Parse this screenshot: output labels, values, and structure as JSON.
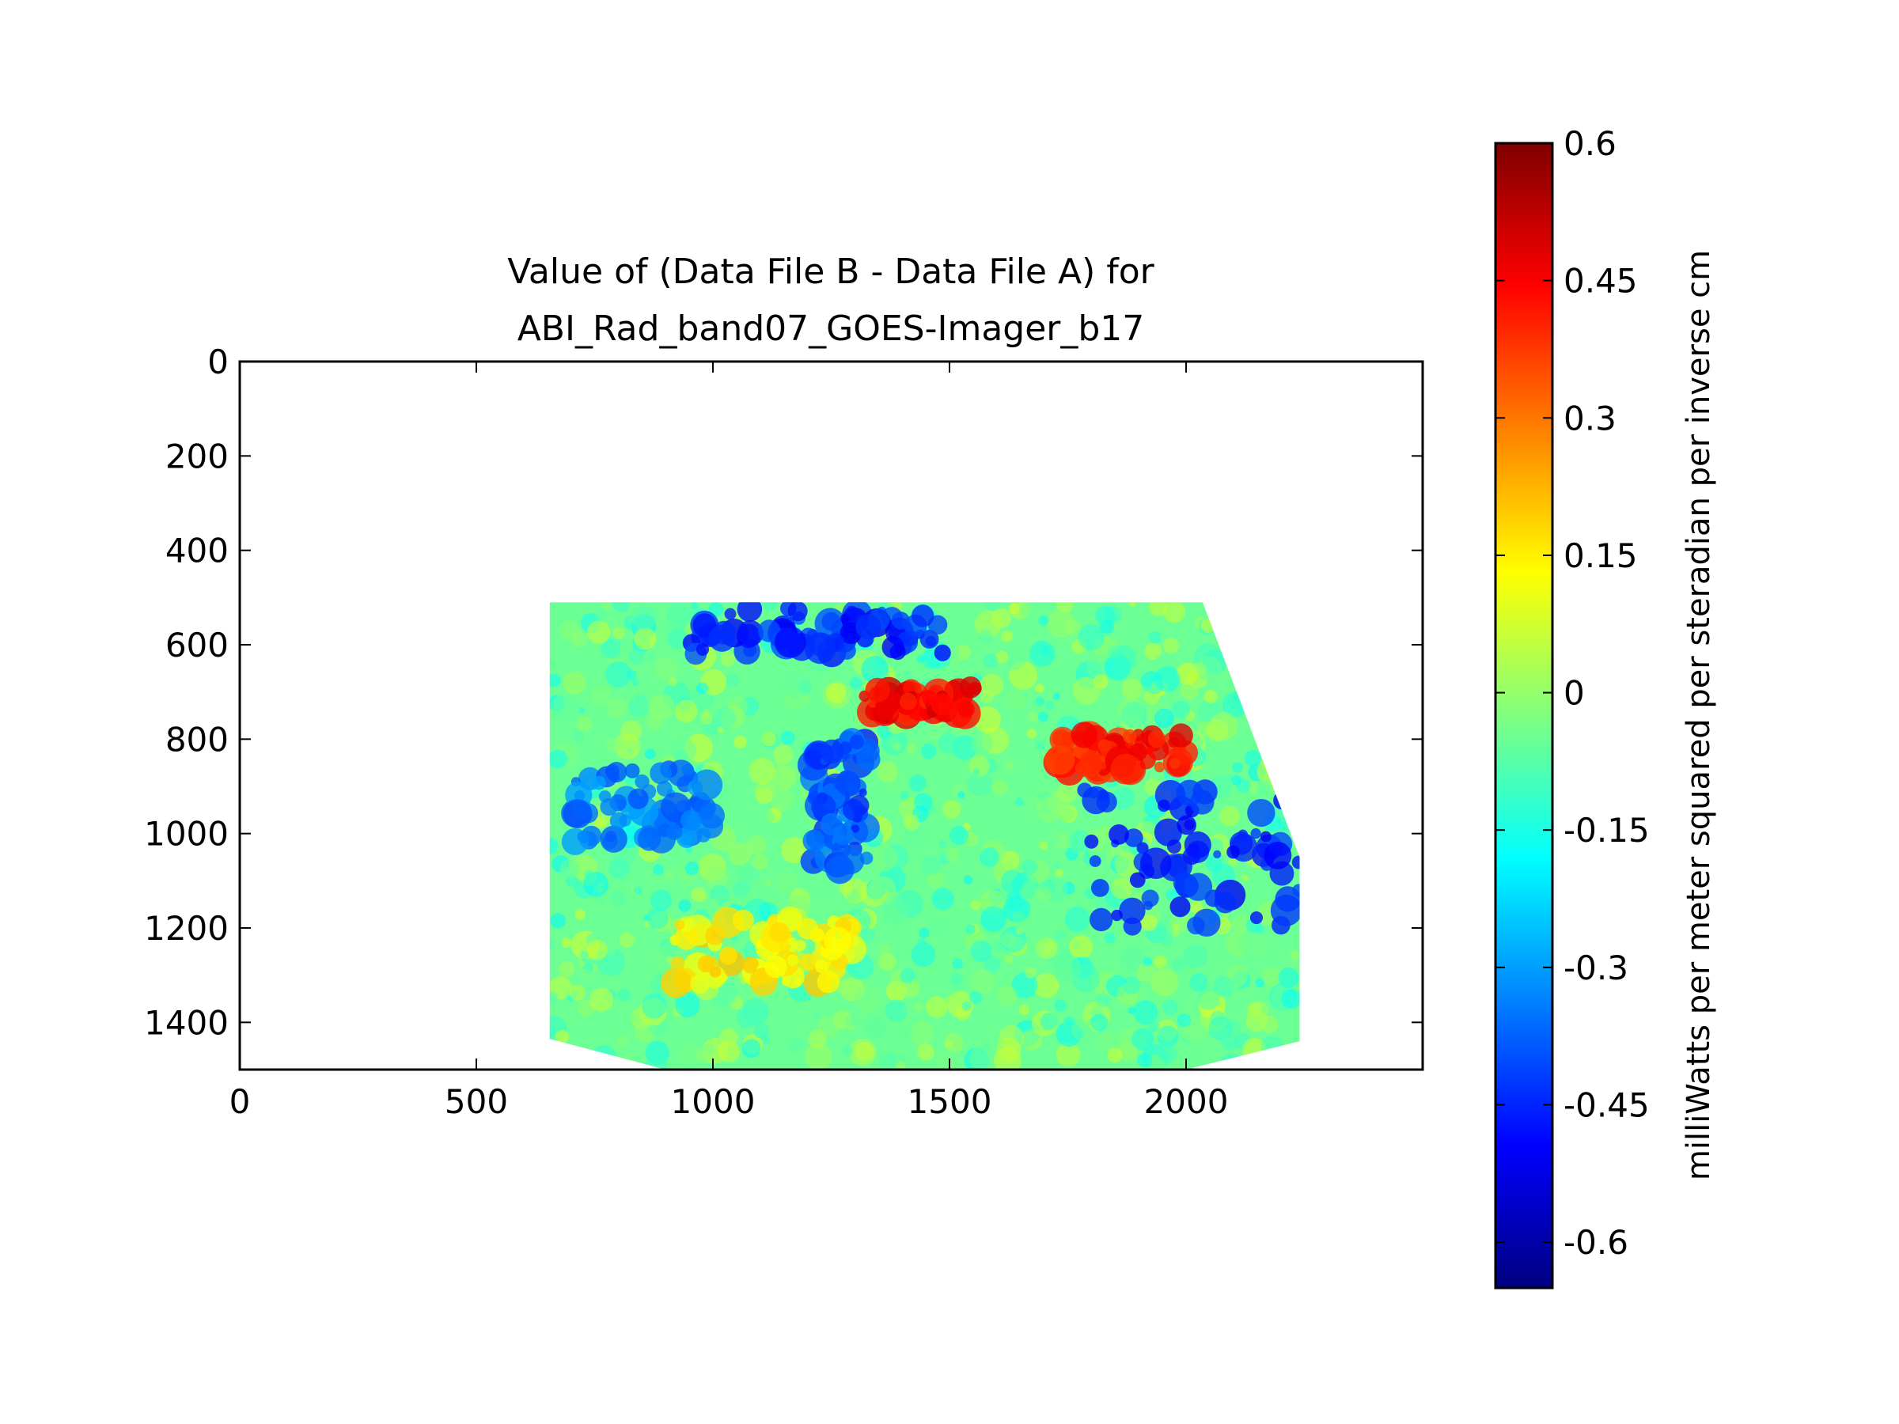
{
  "chart_data": {
    "type": "heatmap",
    "title": [
      "Value of (Data File B - Data File A) for",
      "ABI_Rad_band07_GOES-Imager_b17"
    ],
    "xlabel": "",
    "ylabel": "",
    "xlim": [
      0,
      2500
    ],
    "ylim": [
      1500,
      0
    ],
    "y_inverted": true,
    "x_ticks": [
      "0",
      "500",
      "1000",
      "1500",
      "2000"
    ],
    "x_tick_values": [
      0,
      500,
      1000,
      1500,
      2000
    ],
    "y_ticks": [
      "0",
      "200",
      "400",
      "600",
      "800",
      "1000",
      "1200",
      "1400"
    ],
    "y_tick_values": [
      0,
      200,
      400,
      600,
      800,
      1000,
      1200,
      1400
    ],
    "colormap": "jet",
    "colorbar": {
      "label": "milliWatts per meter squared per steradian per inverse cm",
      "range": [
        -0.65,
        0.6
      ],
      "ticks": [
        "0.6",
        "0.45",
        "0.3",
        "0.15",
        "0",
        "-0.15",
        "-0.3",
        "-0.45",
        "-0.6"
      ],
      "tick_values": [
        0.6,
        0.45,
        0.3,
        0.15,
        0,
        -0.15,
        -0.3,
        -0.45,
        -0.6
      ],
      "colors": [
        "#000080",
        "#0000ff",
        "#0080ff",
        "#00ffff",
        "#80ff80",
        "#ffff00",
        "#ff8000",
        "#ff0000",
        "#800000"
      ]
    },
    "data_region_outline": [
      [
        655,
        510
      ],
      [
        2035,
        510
      ],
      [
        2240,
        1050
      ],
      [
        2240,
        1440
      ],
      [
        2000,
        1500
      ],
      [
        900,
        1500
      ],
      [
        655,
        1435
      ]
    ],
    "features": [
      {
        "value": 0.45,
        "x": [
          1320,
          1560
        ],
        "y": [
          690,
          750
        ]
      },
      {
        "value": 0.42,
        "x": [
          1730,
          2000
        ],
        "y": [
          790,
          870
        ]
      },
      {
        "value": -0.45,
        "x": [
          950,
          1500
        ],
        "y": [
          520,
          620
        ]
      },
      {
        "value": -0.4,
        "x": [
          1210,
          1330
        ],
        "y": [
          800,
          1080
        ]
      },
      {
        "value": -0.45,
        "x": [
          1780,
          2240
        ],
        "y": [
          900,
          1200
        ]
      },
      {
        "value": -0.35,
        "x": [
          700,
          1000
        ],
        "y": [
          860,
          1020
        ]
      },
      {
        "value": 0.15,
        "x": [
          900,
          1300
        ],
        "y": [
          1180,
          1320
        ]
      }
    ],
    "background_value": -0.05
  }
}
